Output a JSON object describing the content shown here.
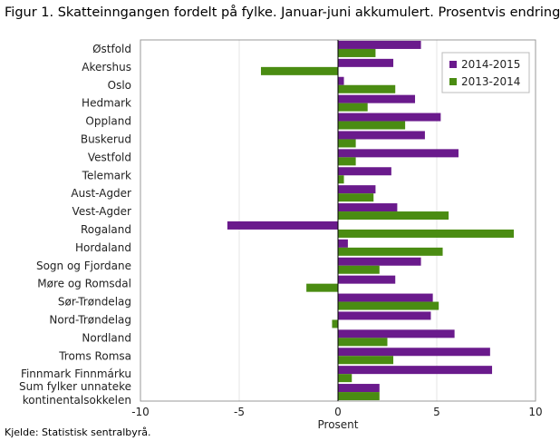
{
  "title": "Figur 1. Skatteinngangen fordelt på fylke. Januar-juni akkumulert. Prosentvis endring",
  "source": "Kjelde: Statistisk sentralbyrå.",
  "chart_data": {
    "type": "bar",
    "orientation": "horizontal",
    "title": "Figur 1. Skatteinngangen fordelt på fylke. Januar-juni akkumulert. Prosentvis endring",
    "xlabel": "Prosent",
    "ylabel": "",
    "xlim": [
      -10,
      10
    ],
    "xticks": [
      -10,
      -5,
      0,
      5,
      10
    ],
    "grid": "vertical",
    "legend_position": "top-right",
    "categories": [
      "Østfold",
      "Akershus",
      "Oslo",
      "Hedmark",
      "Oppland",
      "Buskerud",
      "Vestfold",
      "Telemark",
      "Aust-Agder",
      "Vest-Agder",
      "Rogaland",
      "Hordaland",
      "Sogn og Fjordane",
      "Møre og Romsdal",
      "Sør-Trøndelag",
      "Nord-Trøndelag",
      "Nordland",
      "Troms Romsa",
      "Finnmark Finnmárku",
      "Sum fylker unnateke kontinentalsokkelen"
    ],
    "series": [
      {
        "name": "2014-2015",
        "color": "#6a1a8c",
        "values": [
          4.2,
          2.8,
          0.3,
          3.9,
          5.2,
          4.4,
          6.1,
          2.7,
          1.9,
          3.0,
          -5.6,
          0.5,
          4.2,
          2.9,
          4.8,
          4.7,
          5.9,
          7.7,
          7.8,
          2.1
        ]
      },
      {
        "name": "2013-2014",
        "color": "#4a8c12",
        "values": [
          1.9,
          -3.9,
          2.9,
          1.5,
          3.4,
          0.9,
          0.9,
          0.3,
          1.8,
          5.6,
          8.9,
          5.3,
          2.1,
          -1.6,
          5.1,
          -0.3,
          2.5,
          2.8,
          0.7,
          2.1
        ]
      }
    ]
  }
}
